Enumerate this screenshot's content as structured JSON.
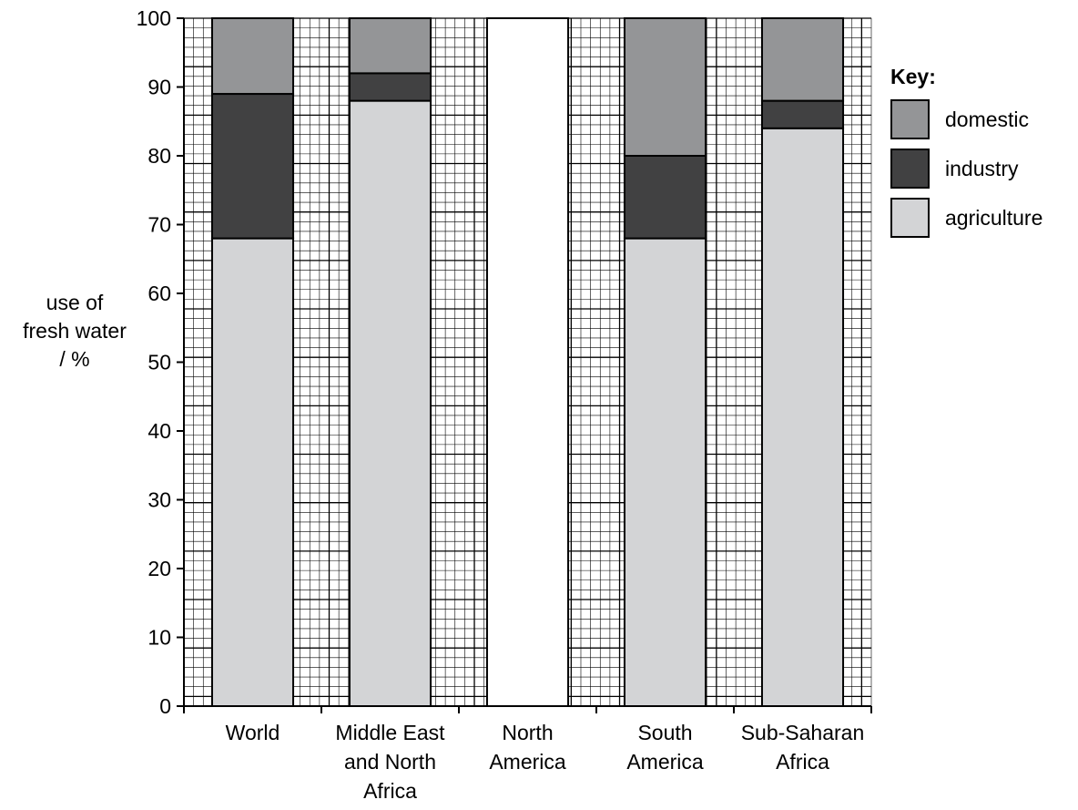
{
  "chart_data": {
    "type": "bar",
    "stacked": true,
    "categories": [
      [
        "World"
      ],
      [
        "Middle East",
        "and North",
        "Africa"
      ],
      [
        "North",
        "America"
      ],
      [
        "South",
        "America"
      ],
      [
        "Sub-Saharan",
        "Africa"
      ]
    ],
    "series": [
      {
        "name": "agriculture",
        "key": "agriculture",
        "values": [
          68,
          88,
          null,
          68,
          84
        ]
      },
      {
        "name": "industry",
        "key": "industry",
        "values": [
          21,
          4,
          null,
          12,
          4
        ]
      },
      {
        "name": "domestic",
        "key": "domestic",
        "values": [
          11,
          8,
          null,
          20,
          12
        ]
      }
    ],
    "blank_category_index": 2,
    "ylabel": [
      "use of",
      "fresh water",
      "/ %"
    ],
    "ylim": [
      0,
      100
    ],
    "yticks": [
      0,
      10,
      20,
      30,
      40,
      50,
      60,
      70,
      80,
      90,
      100
    ],
    "grid": true,
    "legend": {
      "title": "Key:",
      "position": "top-right",
      "entries": [
        "domestic",
        "industry",
        "agriculture"
      ]
    },
    "colors": {
      "agriculture": "#d3d4d6",
      "industry": "#414142",
      "domestic": "#949597",
      "blank": "#ffffff",
      "grid": "#000000"
    }
  }
}
